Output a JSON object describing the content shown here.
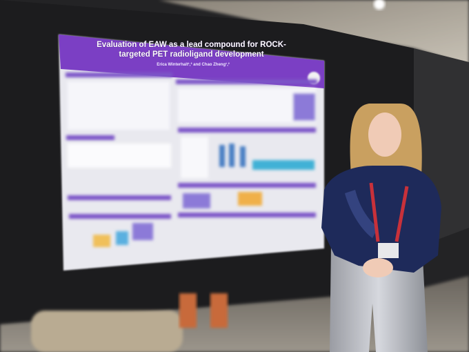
{
  "poster": {
    "title": "Evaluation of EAW as a lead compound for ROCK-targeted PET radioligand development",
    "authors": "Erica Winterhalt¹,² and Chao Zheng¹,²"
  }
}
